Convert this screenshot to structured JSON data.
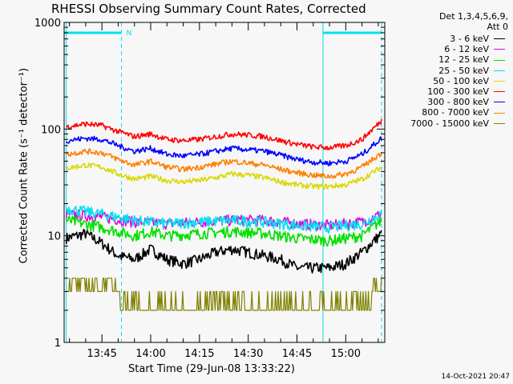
{
  "chart_data": {
    "type": "line",
    "title": "RHESSI Observing Summary Count Rates, Corrected",
    "xlabel": "Start Time (29-Jun-08 13:33:22)",
    "ylabel": "Corrected Count Rate (s⁻¹ detector⁻¹)",
    "footer": "14-Oct-2021 20:47",
    "detectors": "Det 1,3,4,5,6,9,",
    "attenuator": "Att 0",
    "yscale": "log",
    "ylim": [
      1,
      1000
    ],
    "xlim": [
      "13:33:22",
      "15:12:00"
    ],
    "x_ticks": [
      "13:45",
      "14:00",
      "14:15",
      "14:30",
      "14:45",
      "15:00"
    ],
    "y_ticks": [
      "1",
      "10",
      "100",
      "1000"
    ],
    "night_label": "N",
    "night_bars": [
      [
        "13:33:22",
        "13:51:00"
      ],
      [
        "14:53:00",
        "15:11:00"
      ]
    ],
    "x_grid": [
      "13:34:00",
      "13:51:00",
      "14:53:00",
      "15:11:00"
    ],
    "series": [
      {
        "name": "3 - 6 keV",
        "color": "#000000",
        "times": [
          "13:34",
          "13:40",
          "13:45",
          "13:50",
          "13:55",
          "14:00",
          "14:05",
          "14:10",
          "14:15",
          "14:20",
          "14:25",
          "14:30",
          "14:35",
          "14:40",
          "14:45",
          "14:50",
          "14:55",
          "15:00",
          "15:05",
          "15:11"
        ],
        "values": [
          9.5,
          10.5,
          8.5,
          6.5,
          6,
          7.5,
          6,
          5.5,
          6,
          7,
          7.5,
          7,
          6.5,
          6,
          5,
          5,
          5,
          5.5,
          7,
          10.5
        ]
      },
      {
        "name": "6 - 12 keV",
        "color": "#e000e0",
        "times": [
          "13:34",
          "13:45",
          "13:55",
          "14:05",
          "14:15",
          "14:25",
          "14:35",
          "14:45",
          "14:55",
          "15:05",
          "15:11"
        ],
        "values": [
          16,
          15,
          13.5,
          13,
          13.5,
          14,
          14,
          13,
          12.5,
          13.5,
          16
        ]
      },
      {
        "name": "12 - 25 keV",
        "color": "#00e000",
        "times": [
          "13:34",
          "13:45",
          "13:55",
          "14:00",
          "14:05",
          "14:15",
          "14:25",
          "14:35",
          "14:45",
          "14:55",
          "15:05",
          "15:11"
        ],
        "values": [
          14,
          12,
          10,
          11,
          10,
          10.5,
          11,
          10.5,
          9.5,
          9,
          10,
          14
        ]
      },
      {
        "name": "25 - 50 keV",
        "color": "#00e0f0",
        "times": [
          "13:34",
          "13:45",
          "13:55",
          "14:05",
          "14:15",
          "14:25",
          "14:35",
          "14:45",
          "14:55",
          "15:05",
          "15:11"
        ],
        "values": [
          18,
          16,
          14,
          13,
          13.5,
          14,
          13.5,
          12.5,
          12,
          13,
          16
        ]
      },
      {
        "name": "50 - 100 keV",
        "color": "#d8d800",
        "times": [
          "13:34",
          "13:40",
          "13:45",
          "13:50",
          "13:55",
          "14:00",
          "14:05",
          "14:10",
          "14:15",
          "14:20",
          "14:25",
          "14:30",
          "14:35",
          "14:40",
          "14:45",
          "14:50",
          "14:55",
          "15:00",
          "15:05",
          "15:11"
        ],
        "values": [
          43,
          46,
          44,
          38,
          34,
          36,
          33,
          32,
          33,
          35,
          38,
          37,
          35,
          32,
          30,
          29,
          29,
          30,
          34,
          44
        ]
      },
      {
        "name": "100 - 300 keV",
        "color": "#ff0000",
        "times": [
          "13:34",
          "13:40",
          "13:45",
          "13:50",
          "13:55",
          "14:00",
          "14:05",
          "14:10",
          "14:15",
          "14:20",
          "14:25",
          "14:30",
          "14:35",
          "14:40",
          "14:45",
          "14:50",
          "14:55",
          "15:00",
          "15:05",
          "15:11"
        ],
        "values": [
          105,
          112,
          108,
          95,
          85,
          90,
          80,
          78,
          80,
          85,
          90,
          88,
          85,
          78,
          72,
          68,
          67,
          70,
          80,
          120
        ]
      },
      {
        "name": "300 - 800 keV",
        "color": "#0000ff",
        "times": [
          "13:34",
          "13:40",
          "13:45",
          "13:50",
          "13:55",
          "14:00",
          "14:05",
          "14:10",
          "14:15",
          "14:20",
          "14:25",
          "14:30",
          "14:35",
          "14:40",
          "14:45",
          "14:50",
          "14:55",
          "15:00",
          "15:05",
          "15:11"
        ],
        "values": [
          78,
          82,
          80,
          70,
          62,
          66,
          58,
          56,
          58,
          62,
          66,
          64,
          62,
          57,
          52,
          49,
          48,
          50,
          58,
          82
        ]
      },
      {
        "name": "800 - 7000 keV",
        "color": "#ff8000",
        "times": [
          "13:34",
          "13:40",
          "13:45",
          "13:50",
          "13:55",
          "14:00",
          "14:05",
          "14:10",
          "14:15",
          "14:20",
          "14:25",
          "14:30",
          "14:35",
          "14:40",
          "14:45",
          "14:50",
          "14:55",
          "15:00",
          "15:05",
          "15:11"
        ],
        "values": [
          58,
          62,
          60,
          52,
          46,
          50,
          44,
          42,
          44,
          47,
          50,
          48,
          46,
          42,
          39,
          37,
          36,
          38,
          44,
          60
        ]
      },
      {
        "name": "7000 - 15000 keV",
        "color": "#808000",
        "times": [
          "13:34",
          "13:40",
          "13:45",
          "13:50",
          "13:52",
          "14:00",
          "14:10",
          "14:20",
          "14:30",
          "14:40",
          "14:50",
          "14:55",
          "15:00",
          "15:05",
          "15:08",
          "15:11"
        ],
        "values": [
          4,
          4,
          3.5,
          3,
          2,
          2,
          2,
          2,
          2,
          2,
          2,
          2,
          2,
          2.5,
          3,
          4
        ]
      }
    ]
  }
}
